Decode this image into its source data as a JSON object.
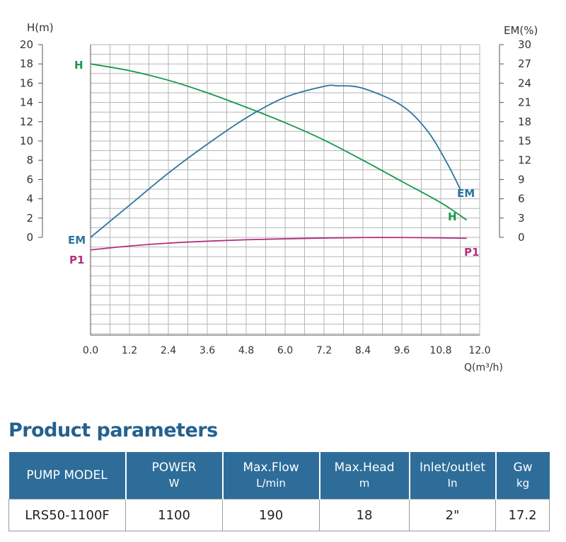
{
  "colors": {
    "grid": "#b5b5b5",
    "axis": "#555555",
    "tick_text": "#333333",
    "H": "#14994a",
    "EM": "#2a75a0",
    "P1": "#b5307a",
    "header_bg": "#2e6d99",
    "title": "#25618e"
  },
  "chart_data": {
    "type": "line",
    "x": {
      "label": "Q(m³/h)",
      "range": [
        0,
        12
      ],
      "ticks": [
        "0.0",
        "1.2",
        "2.4",
        "3.6",
        "4.8",
        "6.0",
        "7.2",
        "8.4",
        "9.6",
        "10.8",
        "12.0"
      ]
    },
    "y_left": {
      "label": "H(m)",
      "range": [
        0,
        20
      ],
      "ticks": [
        "20",
        "18",
        "16",
        "14",
        "12",
        "10",
        "8",
        "6",
        "4",
        "2",
        "0"
      ]
    },
    "y_right": {
      "label": "EM(%)",
      "range": [
        0,
        30
      ],
      "ticks": [
        "30",
        "27",
        "24",
        "21",
        "18",
        "15",
        "12",
        "9",
        "6",
        "3",
        "0"
      ]
    },
    "grid": true,
    "series": [
      {
        "name": "H",
        "axis": "left",
        "x": [
          0,
          1.2,
          2.4,
          3.6,
          4.8,
          6.0,
          7.2,
          8.4,
          9.6,
          10.8,
          11.6
        ],
        "values": [
          18.0,
          17.3,
          16.3,
          15.0,
          13.5,
          11.9,
          10.1,
          8.0,
          5.8,
          3.6,
          1.8
        ]
      },
      {
        "name": "EM",
        "axis": "right",
        "x": [
          0,
          1.2,
          2.4,
          3.6,
          4.8,
          6.0,
          7.2,
          7.6,
          8.4,
          9.6,
          10.4,
          11.0,
          11.4
        ],
        "values": [
          0,
          5.0,
          10.0,
          14.5,
          18.6,
          21.8,
          23.5,
          23.6,
          23.2,
          20.5,
          16.5,
          11.5,
          7.5
        ]
      },
      {
        "name": "P1",
        "axis": "left",
        "x": [
          0,
          1.2,
          2.4,
          3.6,
          4.8,
          6.0,
          7.2,
          8.4,
          9.6,
          10.8,
          11.6
        ],
        "values": [
          -1.3,
          -0.9,
          -0.6,
          -0.4,
          -0.25,
          -0.15,
          -0.07,
          -0.02,
          -0.02,
          -0.05,
          -0.1
        ]
      }
    ],
    "labels": {
      "H_left": "H",
      "H_right": "H",
      "EM_left": "EM",
      "EM_right": "EM",
      "P1_left": "P1",
      "P1_right": "P1"
    }
  },
  "params": {
    "title": "Product parameters",
    "headers": [
      {
        "label": "PUMP MODEL",
        "unit": ""
      },
      {
        "label": "POWER",
        "unit": "W"
      },
      {
        "label": "Max.Flow",
        "unit": "L/min"
      },
      {
        "label": "Max.Head",
        "unit": "m"
      },
      {
        "label": "Inlet/outlet",
        "unit": "In"
      },
      {
        "label": "Gw",
        "unit": "kg"
      }
    ],
    "row": [
      "LRS50-1100F",
      "1100",
      "190",
      "18",
      "2\"",
      "17.2"
    ]
  }
}
